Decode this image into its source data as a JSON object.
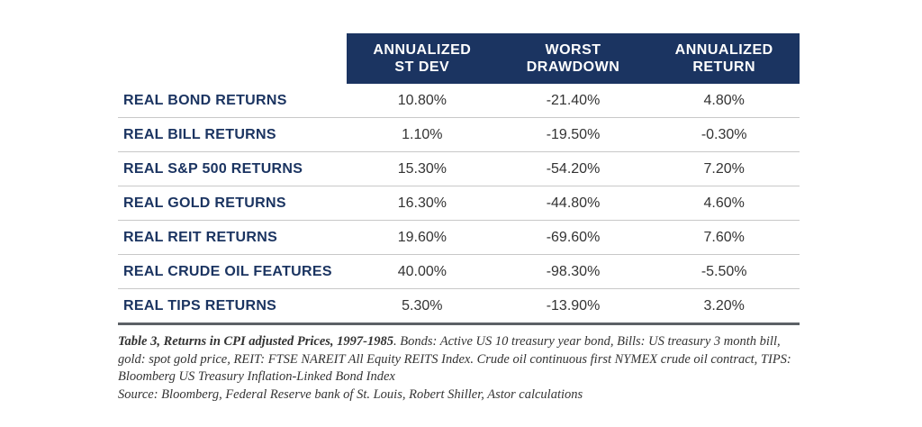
{
  "table": {
    "headers": [
      "ANNUALIZED\nST DEV",
      "WORST\nDRAWDOWN",
      "ANNUALIZED\nRETURN"
    ],
    "rows": [
      {
        "label": "REAL BOND RETURNS",
        "values": [
          "10.80%",
          "-21.40%",
          "4.80%"
        ]
      },
      {
        "label": "REAL BILL RETURNS",
        "values": [
          "1.10%",
          "-19.50%",
          "-0.30%"
        ]
      },
      {
        "label": "REAL S&P 500 RETURNS",
        "values": [
          "15.30%",
          "-54.20%",
          "7.20%"
        ]
      },
      {
        "label": "REAL GOLD RETURNS",
        "values": [
          "16.30%",
          "-44.80%",
          "4.60%"
        ]
      },
      {
        "label": "REAL REIT RETURNS",
        "values": [
          "19.60%",
          "-69.60%",
          "7.60%"
        ]
      },
      {
        "label": "REAL CRUDE OIL FEATURES",
        "values": [
          "40.00%",
          "-98.30%",
          "-5.50%"
        ]
      },
      {
        "label": "REAL TIPS RETURNS",
        "values": [
          "5.30%",
          "-13.90%",
          "3.20%"
        ]
      }
    ]
  },
  "caption": {
    "title": "Table 3, Returns in CPI adjusted Prices, 1997-1985",
    "body": ". Bonds: Active US 10 treasury year bond, Bills: US treasury 3 month bill, gold: spot gold price, REIT: FTSE NAREIT All Equity REITS Index. Crude oil continuous first NYMEX crude oil contract, TIPS: Bloomberg US Treasury Inflation-Linked Bond Index",
    "source": "Source: Bloomberg, Federal Reserve bank of St. Louis, Robert Shiller, Astor calculations"
  },
  "colors": {
    "header_bg": "#1b3461",
    "label_text": "#1b3461",
    "bottom_rule": "#5c6166"
  }
}
